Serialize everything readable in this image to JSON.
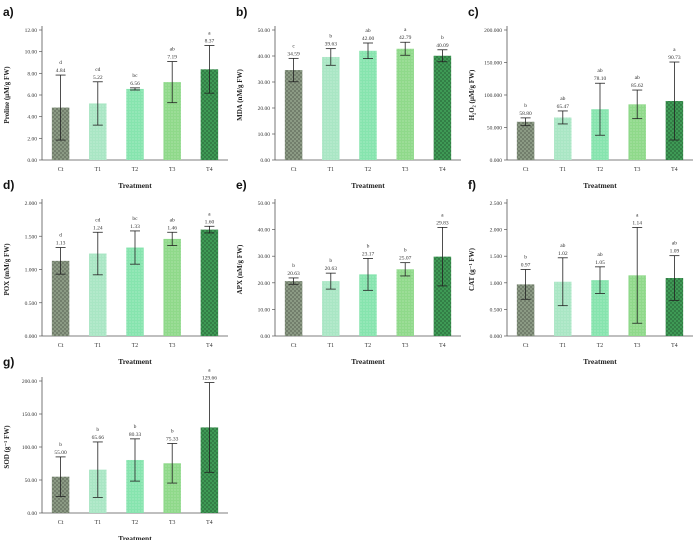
{
  "categories": [
    "Ct",
    "T1",
    "T2",
    "T3",
    "T4"
  ],
  "colors": [
    "#8b9a84",
    "#a9e6c4",
    "#86e4ae",
    "#8fd98a",
    "#3e9a55"
  ],
  "chart_data": [
    {
      "panel": "a)",
      "type": "bar",
      "xlabel": "Treatment",
      "ylabel": "Proline (µM/g FW)",
      "ylim": [
        0,
        12
      ],
      "yticks": [
        "0.00",
        "2.00",
        "4.00",
        "6.00",
        "8.00",
        "10.00",
        "12.00"
      ],
      "values": [
        4.84,
        5.22,
        6.56,
        7.19,
        8.37
      ],
      "errors": [
        3.0,
        2.0,
        0.1,
        1.9,
        2.2
      ],
      "value_labels": [
        "4.84",
        "5.22",
        "6.56",
        "7.19",
        "8.37"
      ],
      "letters": [
        "d",
        "cd",
        "bc",
        "ab",
        "a"
      ]
    },
    {
      "panel": "b)",
      "type": "bar",
      "xlabel": "Treatment",
      "ylabel": "MDA (nM/g FW)",
      "ylim": [
        0,
        50
      ],
      "yticks": [
        "0.00",
        "10.00",
        "20.00",
        "30.00",
        "40.00",
        "50.00"
      ],
      "values": [
        34.59,
        39.63,
        42.0,
        42.79,
        40.09
      ],
      "errors": [
        4.5,
        3.2,
        3.0,
        2.5,
        2.3
      ],
      "value_labels": [
        "34.59",
        "39.63",
        "42.00",
        "42.79",
        "40.09"
      ],
      "letters": [
        "c",
        "b",
        "ab",
        "a",
        "b"
      ]
    },
    {
      "panel": "c)",
      "type": "bar",
      "xlabel": "Treatment",
      "ylabel": "H₂O₂ (µM/g FW)",
      "ylim": [
        0,
        200
      ],
      "yticks": [
        "0.000",
        "50.000",
        "100.000",
        "150.000",
        "200.000"
      ],
      "values": [
        58.8,
        65.47,
        78.1,
        85.62,
        90.73
      ],
      "errors": [
        6.0,
        10.0,
        40.0,
        22.0,
        60.0
      ],
      "value_labels": [
        "58.80",
        "65.47",
        "78.10",
        "85.62",
        "90.73"
      ],
      "letters": [
        "b",
        "ab",
        "ab",
        "ab",
        "a"
      ]
    },
    {
      "panel": "d)",
      "type": "bar",
      "xlabel": "Treatment",
      "ylabel": "POX (mM/g FW)",
      "ylim": [
        0,
        2
      ],
      "yticks": [
        "0.000",
        "0.500",
        "1.000",
        "1.500",
        "2.000"
      ],
      "values": [
        1.13,
        1.24,
        1.33,
        1.46,
        1.6
      ],
      "errors": [
        0.2,
        0.32,
        0.25,
        0.1,
        0.05
      ],
      "value_labels": [
        "1.13",
        "1.24",
        "1.33",
        "1.46",
        "1.60"
      ],
      "letters": [
        "d",
        "cd",
        "bc",
        "ab",
        "a"
      ]
    },
    {
      "panel": "e)",
      "type": "bar",
      "xlabel": "Treatment",
      "ylabel": "APX (nM/g FW)",
      "ylim": [
        0,
        50
      ],
      "yticks": [
        "0.00",
        "10.00",
        "20.00",
        "30.00",
        "40.00",
        "50.00"
      ],
      "values": [
        20.63,
        20.63,
        23.17,
        25.07,
        29.83
      ],
      "errors": [
        1.2,
        3.0,
        6.0,
        2.5,
        11.0
      ],
      "value_labels": [
        "20.63",
        "20.63",
        "23.17",
        "25.07",
        "29.83"
      ],
      "letters": [
        "b",
        "b",
        "b",
        "b",
        "a"
      ]
    },
    {
      "panel": "f)",
      "type": "bar",
      "xlabel": "Treatment",
      "ylabel": "CAT (g⁻¹ FW)",
      "ylim": [
        0,
        2.5
      ],
      "yticks": [
        "0.000",
        "0.500",
        "1.000",
        "1.500",
        "2.000",
        "2.500"
      ],
      "values": [
        0.97,
        1.02,
        1.05,
        1.14,
        1.09
      ],
      "errors": [
        0.28,
        0.45,
        0.25,
        0.9,
        0.42
      ],
      "value_labels": [
        "0.97",
        "1.02",
        "1.05",
        "1.14",
        "1.09"
      ],
      "letters": [
        "b",
        "ab",
        "ab",
        "a",
        "ab"
      ]
    },
    {
      "panel": "g)",
      "type": "bar",
      "xlabel": "Treatment",
      "ylabel": "SOD (g⁻¹ FW)",
      "ylim": [
        0,
        200
      ],
      "yticks": [
        "0.00",
        "50.00",
        "100.00",
        "150.00",
        "200.00"
      ],
      "values": [
        55.0,
        65.66,
        80.33,
        75.33,
        129.66
      ],
      "errors": [
        30.0,
        42.0,
        32.0,
        30.0,
        68.0
      ],
      "value_labels": [
        "55.00",
        "65.66",
        "80.33",
        "75.33",
        "129.66"
      ],
      "letters": [
        "b",
        "b",
        "b",
        "b",
        "a"
      ]
    }
  ]
}
